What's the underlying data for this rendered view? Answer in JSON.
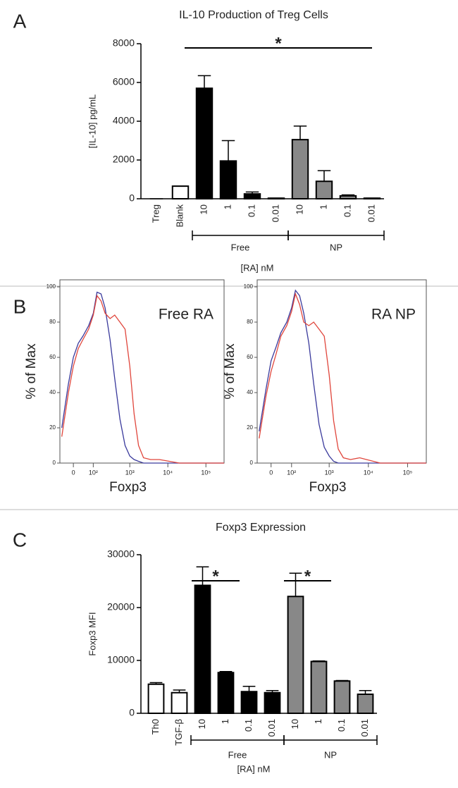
{
  "chart_data": [
    {
      "type": "bar",
      "panel_label": "A",
      "title": "IL-10 Production of Treg Cells",
      "y_label": "[IL-10] pg/mL",
      "x_label": "[RA] nM",
      "categories": [
        "Treg",
        "Blank",
        "10",
        "1",
        "0.1",
        "0.01",
        "10",
        "1",
        "0.1",
        "0.01"
      ],
      "values": [
        0,
        650,
        5700,
        1950,
        250,
        30,
        3050,
        900,
        150,
        30
      ],
      "errors": [
        0,
        0,
        650,
        1050,
        100,
        0,
        700,
        550,
        50,
        0
      ],
      "colors": [
        "#ffffff",
        "#ffffff",
        "#000000",
        "#000000",
        "#000000",
        "#000000",
        "#888888",
        "#888888",
        "#888888",
        "#888888"
      ],
      "groups": [
        "Free",
        "NP"
      ],
      "significance": [
        "*"
      ],
      "ylim": [
        0,
        8000
      ],
      "yticks": [
        0,
        2000,
        4000,
        6000,
        8000
      ]
    },
    {
      "type": "line",
      "panel_label": "B",
      "annotation": "Free RA",
      "y_label": "% of Max",
      "x_label": "Foxp3",
      "scale": "biexponential",
      "x": [
        -50,
        -20,
        0,
        20,
        40,
        70,
        100,
        130,
        170,
        220,
        300,
        400,
        550,
        750,
        1000,
        1300,
        1700,
        2300,
        3500,
        6000,
        20000,
        300000
      ],
      "series": [
        {
          "color": "#3a3a9c",
          "values": [
            20,
            45,
            60,
            68,
            72,
            78,
            85,
            97,
            96,
            88,
            70,
            48,
            25,
            10,
            4,
            2,
            1,
            0,
            0,
            0,
            0,
            0
          ]
        },
        {
          "color": "#e0463c",
          "values": [
            15,
            40,
            55,
            65,
            70,
            76,
            84,
            95,
            92,
            85,
            82,
            84,
            80,
            76,
            55,
            28,
            10,
            3,
            2,
            2,
            0,
            0
          ]
        }
      ],
      "xlim": [
        -60,
        300000
      ],
      "xticks": [
        0,
        {
          "value": 100,
          "label": "10²"
        },
        {
          "value": 1000,
          "label": "10³"
        },
        {
          "value": 10000,
          "label": "10⁴"
        },
        {
          "value": 100000,
          "label": "10⁵"
        }
      ],
      "ylim": [
        0,
        104
      ],
      "yticks": [
        0,
        20,
        40,
        60,
        80,
        100
      ]
    },
    {
      "type": "line",
      "annotation": "RA NP",
      "y_label": "% of Max",
      "x_label": "Foxp3",
      "scale": "biexponential",
      "x": [
        -50,
        -20,
        0,
        20,
        40,
        70,
        100,
        130,
        170,
        220,
        300,
        400,
        550,
        750,
        1000,
        1300,
        1700,
        2300,
        3500,
        6000,
        20000,
        300000
      ],
      "series": [
        {
          "color": "#3a3a9c",
          "values": [
            18,
            42,
            58,
            66,
            74,
            80,
            88,
            98,
            95,
            85,
            68,
            45,
            22,
            9,
            4,
            1,
            0,
            0,
            0,
            0,
            0,
            0
          ]
        },
        {
          "color": "#e0463c",
          "values": [
            14,
            38,
            52,
            62,
            72,
            78,
            86,
            96,
            90,
            80,
            78,
            80,
            76,
            72,
            50,
            24,
            8,
            3,
            2,
            3,
            0,
            0
          ]
        }
      ],
      "xlim": [
        -60,
        300000
      ],
      "xticks": [
        0,
        {
          "value": 100,
          "label": "10²"
        },
        {
          "value": 1000,
          "label": "10³"
        },
        {
          "value": 10000,
          "label": "10⁴"
        },
        {
          "value": 100000,
          "label": "10⁵"
        }
      ],
      "ylim": [
        0,
        104
      ],
      "yticks": [
        0,
        20,
        40,
        60,
        80,
        100
      ]
    },
    {
      "type": "bar",
      "panel_label": "C",
      "title": "Foxp3 Expression",
      "y_label": "Foxp3 MFI",
      "x_label": "[RA] nM",
      "categories": [
        "Th0",
        "TGF-β",
        "10",
        "1",
        "0.1",
        "0.01",
        "10",
        "1",
        "0.1",
        "0.01"
      ],
      "values": [
        5500,
        3900,
        24200,
        7700,
        4100,
        3900,
        22100,
        9800,
        6100,
        3600
      ],
      "errors": [
        300,
        500,
        3500,
        200,
        1000,
        400,
        4400,
        100,
        100,
        700
      ],
      "colors": [
        "#ffffff",
        "#ffffff",
        "#000000",
        "#000000",
        "#000000",
        "#000000",
        "#888888",
        "#888888",
        "#888888",
        "#888888"
      ],
      "groups": [
        "Free",
        "NP"
      ],
      "significance": [
        "*",
        "*"
      ],
      "ylim": [
        0,
        30000
      ],
      "yticks": [
        0,
        10000,
        20000,
        30000
      ]
    }
  ]
}
